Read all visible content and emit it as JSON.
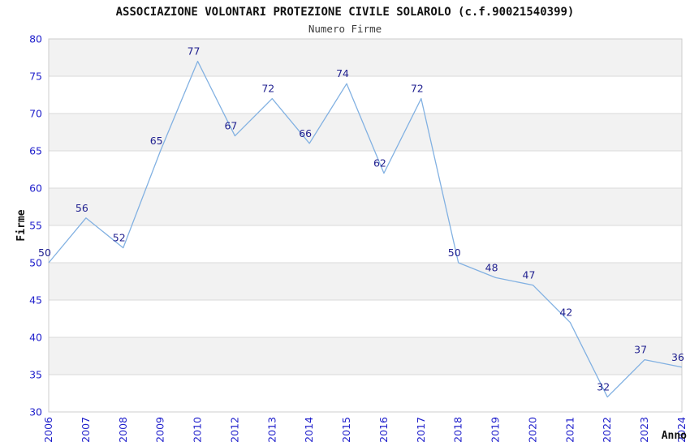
{
  "chart_data": {
    "type": "line",
    "title": "ASSOCIAZIONE VOLONTARI PROTEZIONE CIVILE SOLAROLO (c.f.90021540399)",
    "subtitle": "Numero Firme",
    "xlabel": "Anno",
    "ylabel": "Firme",
    "categories": [
      "2006",
      "2007",
      "2008",
      "2009",
      "2010",
      "2012",
      "2013",
      "2014",
      "2015",
      "2016",
      "2017",
      "2018",
      "2019",
      "2020",
      "2021",
      "2022",
      "2023",
      "2024"
    ],
    "series": [
      {
        "name": "Numero Firme",
        "values": [
          50,
          56,
          52,
          65,
          77,
          67,
          72,
          66,
          74,
          62,
          72,
          50,
          48,
          47,
          42,
          32,
          37,
          36
        ]
      }
    ],
    "ylim": [
      30,
      80
    ],
    "ytick_step": 5,
    "grid": true,
    "alternating_bands": true,
    "legend": "none",
    "data_labels_visible": true,
    "colors": {
      "line": "#82b1e2",
      "data_label": "#1f1f8f",
      "axis_tick_label": "#2222cc",
      "band_gray": "#f2f2f2",
      "band_white": "#ffffff",
      "gridline": "#d9d9d9",
      "plot_border": "#cccccc",
      "title": "#111111",
      "subtitle": "#3c3c3c",
      "background": "#ffffff"
    }
  }
}
